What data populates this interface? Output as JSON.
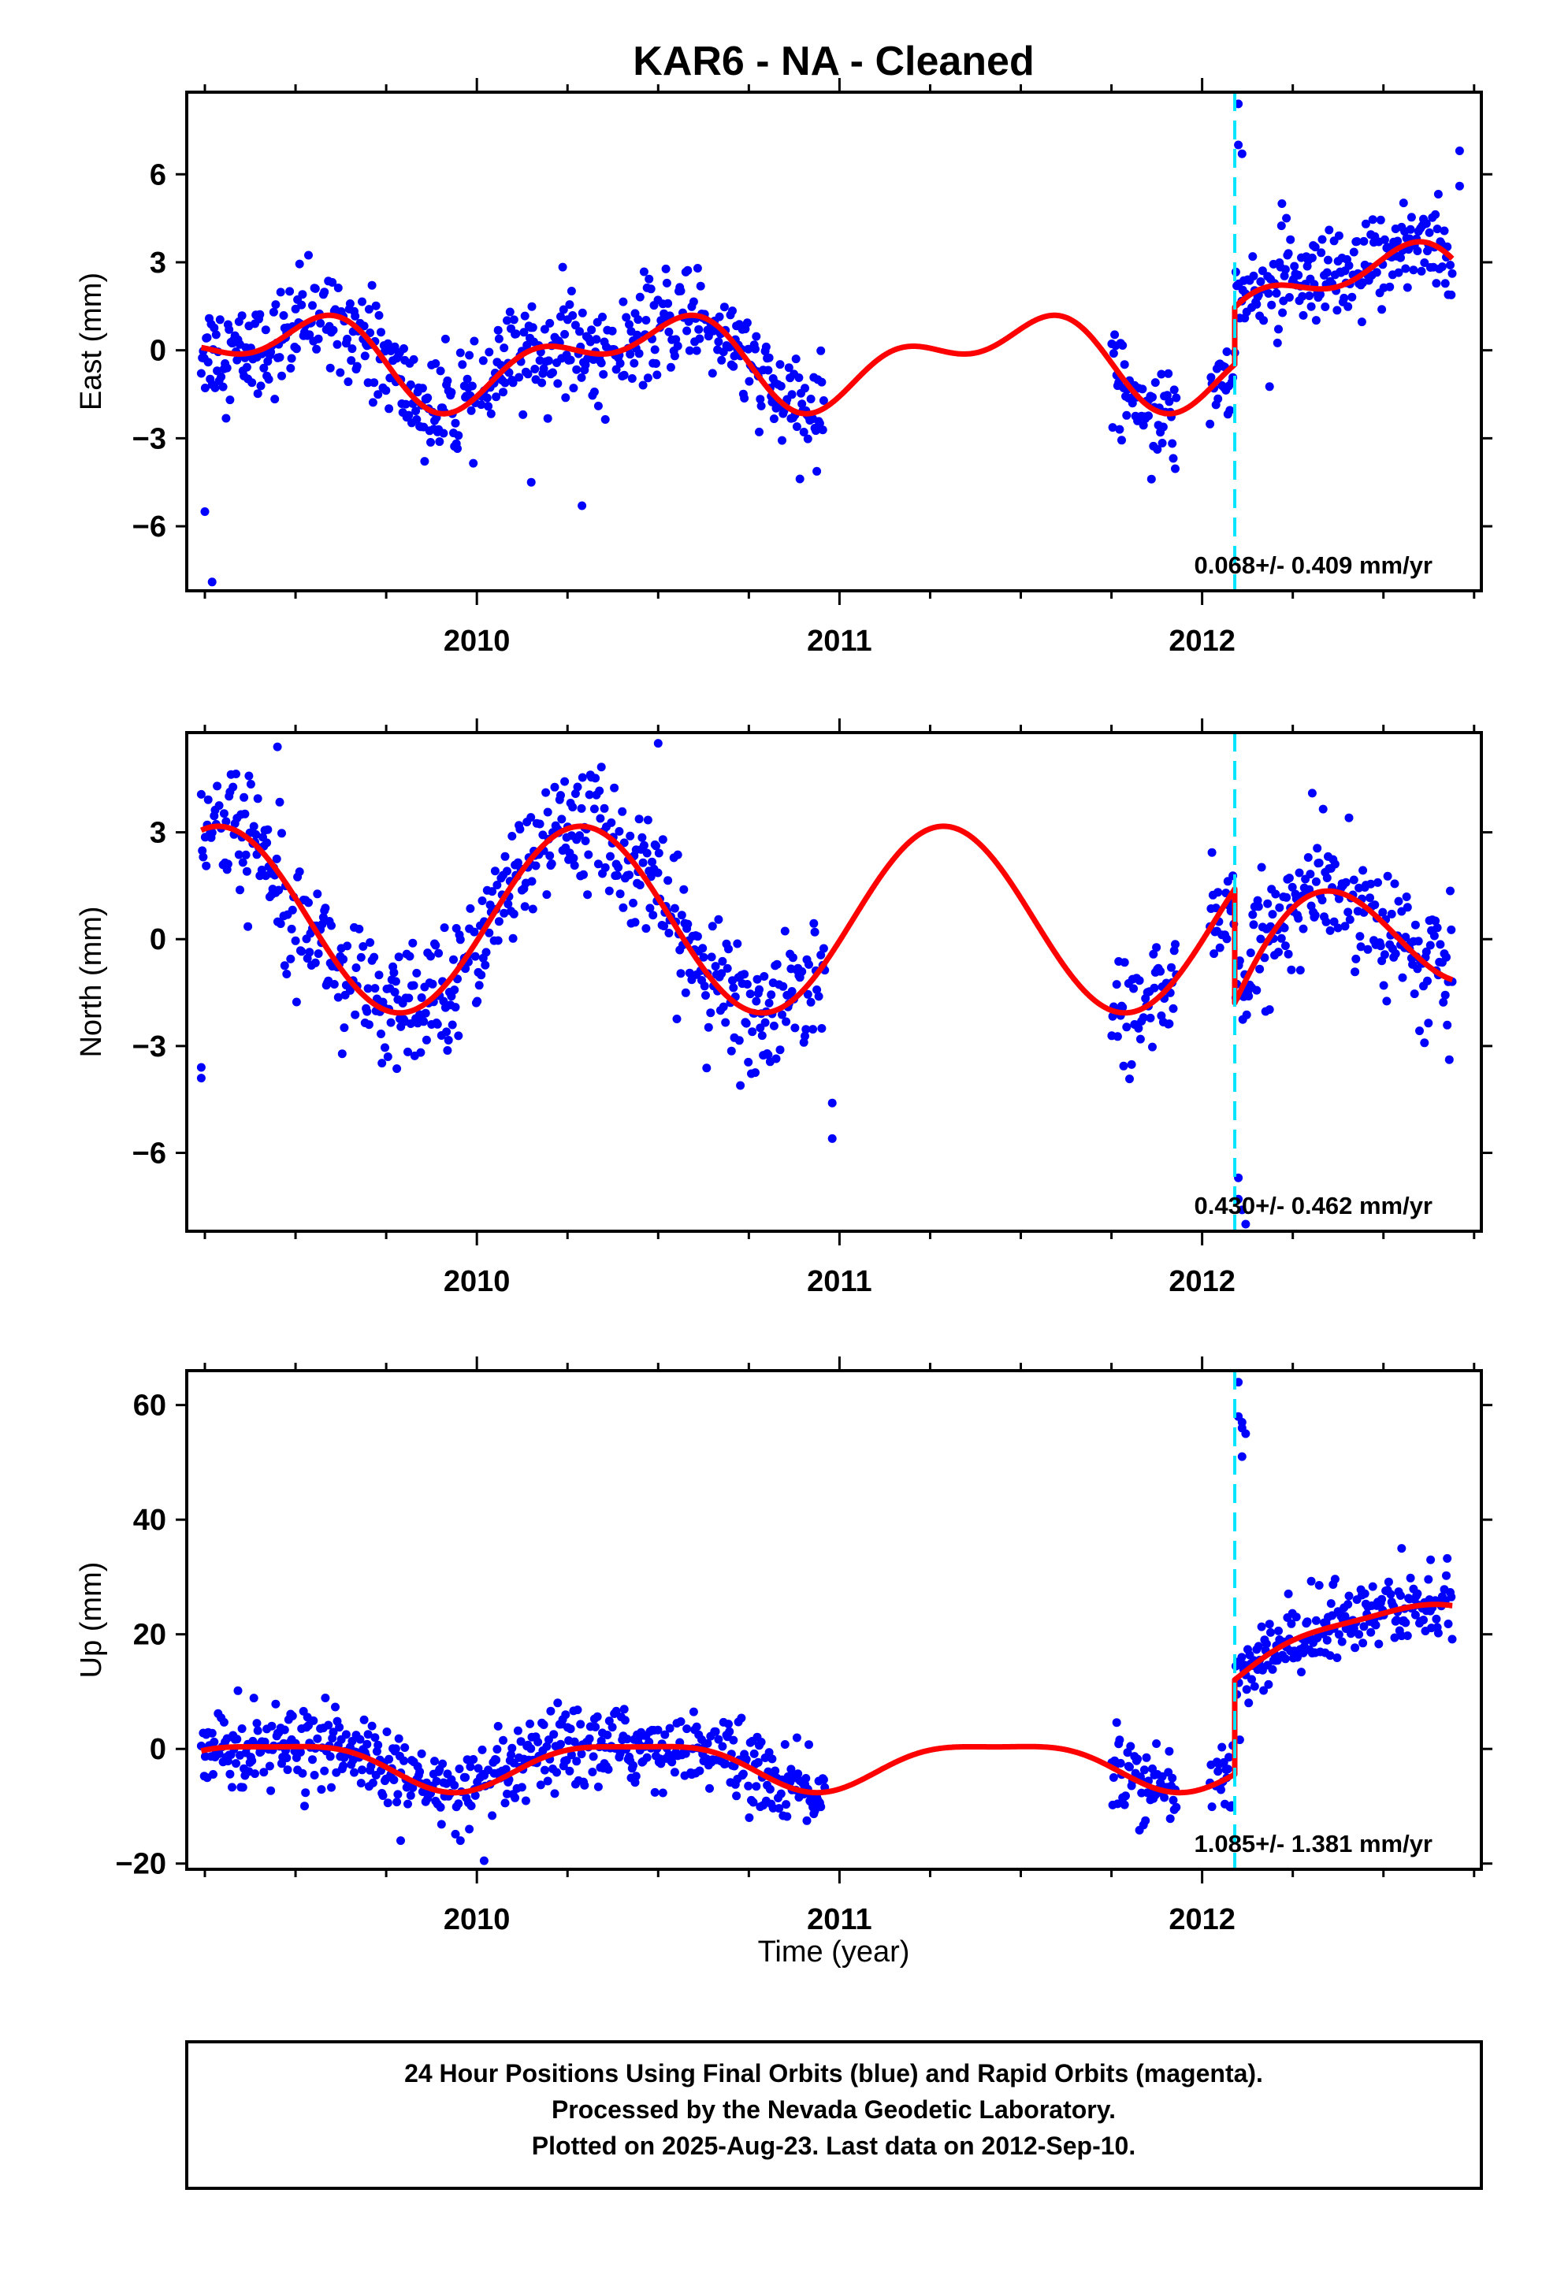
{
  "figure": {
    "title": "KAR6  - NA - Cleaned",
    "xlabel": "Time (year)",
    "footer": [
      "24 Hour Positions Using Final Orbits (blue) and Rapid Orbits (magenta).",
      "Processed by the Nevada Geodetic Laboratory.",
      "Plotted on 2025-Aug-23. Last data on 2012-Sep-10."
    ],
    "colors": {
      "points": "#0000ff",
      "model": "#ff0000",
      "event": "#00e5ff",
      "frame": "#000000"
    }
  },
  "chart_data": [
    {
      "type": "scatter",
      "component": "east",
      "ylabel": "East (mm)",
      "rate_text": "0.068+/- 0.409 mm/yr",
      "xlim": [
        2009.2,
        2012.77
      ],
      "ylim": [
        -8.2,
        8.8
      ],
      "yticks": [
        -6,
        -3,
        0,
        3,
        6
      ],
      "xticks": [
        2010,
        2011,
        2012
      ],
      "data_span": [
        2009.24,
        2012.69
      ],
      "gaps": [
        [
          2010.96,
          2011.75
        ],
        [
          2011.93,
          2012.02
        ]
      ],
      "event_x": 2012.09,
      "outliers": [
        [
          2009.25,
          -5.5
        ],
        [
          2009.27,
          -7.9
        ],
        [
          2012.1,
          8.4
        ],
        [
          2012.1,
          7.0
        ],
        [
          2012.11,
          6.7
        ],
        [
          2012.71,
          6.8
        ],
        [
          2012.71,
          5.6
        ],
        [
          2010.15,
          -4.5
        ],
        [
          2010.29,
          -5.3
        ],
        [
          2012.22,
          5.0
        ]
      ],
      "model": {
        "offset": -0.3,
        "annual": [
          0.25,
          -1.15
        ],
        "semiannual": [
          0.78,
          -0.12
        ],
        "steps": [
          [
            2012.09,
            1.95
          ]
        ],
        "trend_after": [
          2012.09,
          1.1
        ]
      },
      "noise_sd": 0.85
    },
    {
      "type": "scatter",
      "component": "north",
      "ylabel": "North (mm)",
      "rate_text": "0.430+/- 0.462 mm/yr",
      "xlim": [
        2009.2,
        2012.77
      ],
      "ylim": [
        -8.2,
        5.8
      ],
      "yticks": [
        -6,
        -3,
        0,
        3
      ],
      "xticks": [
        2010,
        2011,
        2012
      ],
      "data_span": [
        2009.24,
        2012.69
      ],
      "gaps": [
        [
          2010.96,
          2011.75
        ],
        [
          2011.93,
          2012.02
        ]
      ],
      "event_x": 2012.09,
      "outliers": [
        [
          2009.24,
          -3.9
        ],
        [
          2009.24,
          -3.6
        ],
        [
          2010.98,
          -4.6
        ],
        [
          2010.98,
          -5.6
        ],
        [
          2012.1,
          -6.7
        ],
        [
          2012.1,
          -7.3
        ],
        [
          2012.11,
          -7.6
        ],
        [
          2012.12,
          -8.0
        ],
        [
          2009.45,
          5.4
        ],
        [
          2010.5,
          5.5
        ]
      ],
      "model": {
        "offset": 0.55,
        "annual": [
          2.55,
          -0.6
        ],
        "semiannual": [
          0.0,
          0.0
        ],
        "steps": [
          [
            2012.09,
            -3.2
          ]
        ],
        "trend_after": [
          2012.09,
          6.1
        ]
      },
      "noise_sd": 0.85
    },
    {
      "type": "scatter",
      "component": "up",
      "ylabel": "Up (mm)",
      "rate_text": "1.085+/- 1.381 mm/yr",
      "xlim": [
        2009.2,
        2012.77
      ],
      "ylim": [
        -21,
        66
      ],
      "yticks": [
        -20,
        0,
        20,
        40,
        60
      ],
      "xticks": [
        2010,
        2011,
        2012
      ],
      "data_span": [
        2009.24,
        2012.69
      ],
      "gaps": [
        [
          2010.96,
          2011.75
        ],
        [
          2011.93,
          2012.02
        ]
      ],
      "event_x": 2012.09,
      "outliers": [
        [
          2012.1,
          64
        ],
        [
          2012.1,
          58
        ],
        [
          2012.11,
          57
        ],
        [
          2012.11,
          56
        ],
        [
          2012.12,
          55
        ],
        [
          2012.11,
          51
        ],
        [
          2009.79,
          -16
        ],
        [
          2010.02,
          -19.5
        ],
        [
          2012.55,
          35
        ],
        [
          2012.63,
          33
        ]
      ],
      "model": {
        "offset": -2.5,
        "annual": [
          1.5,
          -3.7
        ],
        "semiannual": [
          0.8,
          -0.8
        ],
        "steps": [
          [
            2012.09,
            16.5
          ]
        ],
        "trend_after": [
          2012.09,
          16.5
        ]
      },
      "noise_sd": 3.3
    }
  ]
}
